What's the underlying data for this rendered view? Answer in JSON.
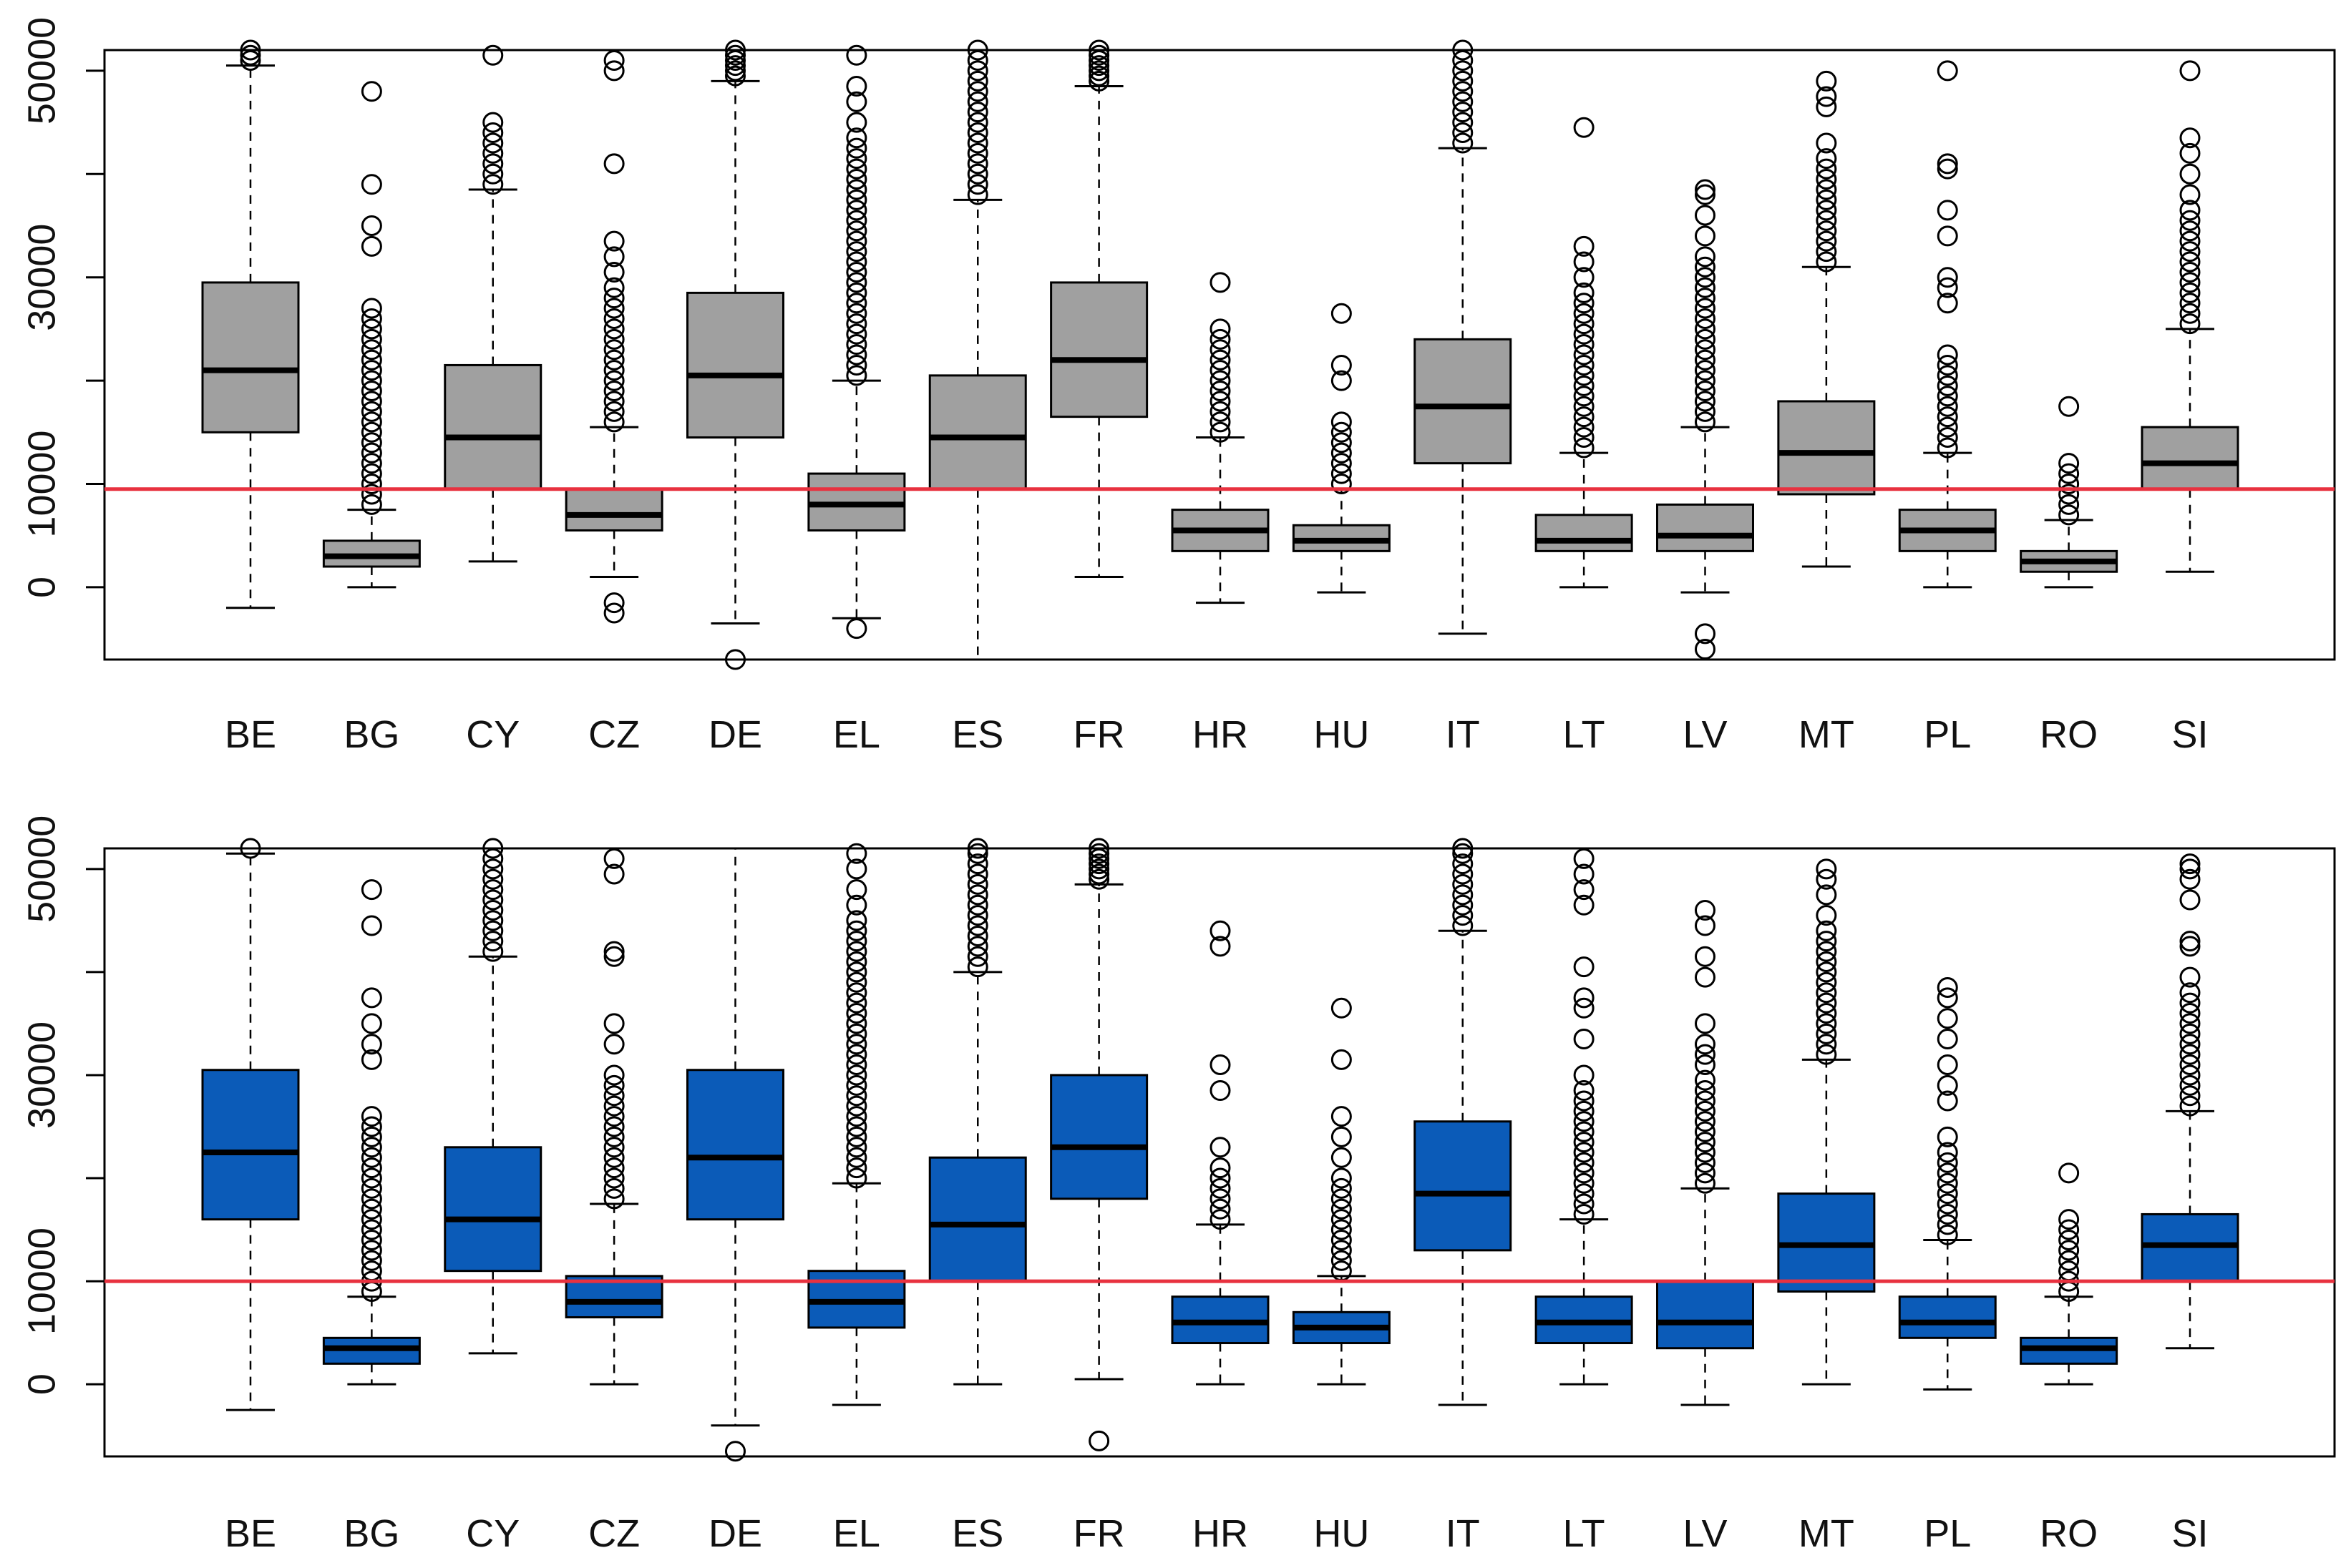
{
  "chart_data": [
    {
      "type": "boxplot",
      "title": "",
      "xlabel": "",
      "ylabel": "",
      "ylim": [
        -7000,
        52000
      ],
      "y_ticks": [
        "0",
        "10000",
        "30000",
        "50000"
      ],
      "y_minor_ticks": [
        20000,
        40000
      ],
      "reference_line": {
        "value": 9500,
        "color": "#e8313f"
      },
      "box_color": "#a0a0a0",
      "categories": [
        "BE",
        "BG",
        "CY",
        "CZ",
        "DE",
        "EL",
        "ES",
        "FR",
        "HR",
        "HU",
        "IT",
        "LT",
        "LV",
        "MT",
        "PL",
        "RO",
        "SI"
      ],
      "series": [
        {
          "name": "BE",
          "whisker_low": -2000,
          "q1": 15000,
          "median": 21000,
          "q3": 29500,
          "whisker_high": 50500,
          "outliers_low": [],
          "outliers_high": [
            51000,
            51500,
            52000
          ]
        },
        {
          "name": "BG",
          "whisker_low": 0,
          "q1": 2000,
          "median": 3000,
          "q3": 4500,
          "whisker_high": 7500,
          "outliers_low": [],
          "outliers_high": [
            8000,
            9000,
            10000,
            11000,
            12000,
            13000,
            14000,
            15000,
            16000,
            17000,
            18000,
            19000,
            20000,
            21000,
            22000,
            23000,
            24000,
            25000,
            26000,
            27000,
            33000,
            35000,
            39000,
            48000
          ]
        },
        {
          "name": "CY",
          "whisker_low": 2500,
          "q1": 9500,
          "median": 14500,
          "q3": 21500,
          "whisker_high": 38500,
          "outliers_low": [],
          "outliers_high": [
            39000,
            40000,
            41000,
            42000,
            43000,
            44000,
            45000,
            51500
          ]
        },
        {
          "name": "CZ",
          "whisker_low": 1000,
          "q1": 5500,
          "median": 7000,
          "q3": 9500,
          "whisker_high": 15500,
          "outliers_low": [
            -1500,
            -2500
          ],
          "outliers_high": [
            16000,
            17000,
            18000,
            19000,
            20000,
            21000,
            22000,
            23000,
            24000,
            25000,
            26000,
            27000,
            28000,
            29000,
            30500,
            32000,
            33500,
            41000,
            50000,
            51000
          ]
        },
        {
          "name": "DE",
          "whisker_low": -3500,
          "q1": 14500,
          "median": 20500,
          "q3": 28500,
          "whisker_high": 49000,
          "outliers_low": [
            -7000
          ],
          "outliers_high": [
            49500,
            50000,
            50500,
            51000,
            51500,
            52000
          ]
        },
        {
          "name": "EL",
          "whisker_low": -3000,
          "q1": 5500,
          "median": 8000,
          "q3": 11000,
          "whisker_high": 20000,
          "outliers_low": [
            -4000
          ],
          "outliers_high": [
            20500,
            21500,
            22500,
            23500,
            24500,
            25500,
            26500,
            27500,
            28500,
            29500,
            30500,
            31500,
            32500,
            33500,
            34500,
            35500,
            36500,
            37500,
            38500,
            39500,
            40500,
            41500,
            42500,
            43500,
            45000,
            47000,
            48500,
            51500
          ]
        },
        {
          "name": "ES",
          "whisker_low": -7000,
          "q1": 9500,
          "median": 14500,
          "q3": 20500,
          "whisker_high": 37500,
          "outliers_low": [],
          "outliers_high": [
            38000,
            39000,
            40000,
            41000,
            42000,
            43000,
            44000,
            45000,
            46000,
            47000,
            48000,
            49000,
            50000,
            51000,
            52000
          ]
        },
        {
          "name": "FR",
          "whisker_low": 1000,
          "q1": 16500,
          "median": 22000,
          "q3": 29500,
          "whisker_high": 48500,
          "outliers_low": [],
          "outliers_high": [
            49000,
            49500,
            50000,
            50500,
            51000,
            51500,
            52000
          ]
        },
        {
          "name": "HR",
          "whisker_low": -1500,
          "q1": 3500,
          "median": 5500,
          "q3": 7500,
          "whisker_high": 14500,
          "outliers_low": [],
          "outliers_high": [
            15000,
            16000,
            17000,
            18000,
            19000,
            20000,
            21000,
            22000,
            23000,
            24000,
            25000,
            29500
          ]
        },
        {
          "name": "HU",
          "whisker_low": -500,
          "q1": 3500,
          "median": 4500,
          "q3": 6000,
          "whisker_high": 9500,
          "outliers_low": [],
          "outliers_high": [
            10000,
            11000,
            12000,
            13000,
            14000,
            15000,
            16000,
            20000,
            21500,
            26500
          ]
        },
        {
          "name": "IT",
          "whisker_low": -4500,
          "q1": 12000,
          "median": 17500,
          "q3": 24000,
          "whisker_high": 42500,
          "outliers_low": [],
          "outliers_high": [
            43000,
            44000,
            45000,
            46000,
            47000,
            48000,
            49000,
            50000,
            51000,
            52000
          ]
        },
        {
          "name": "LT",
          "whisker_low": 0,
          "q1": 3500,
          "median": 4500,
          "q3": 7000,
          "whisker_high": 13000,
          "outliers_low": [],
          "outliers_high": [
            13500,
            14500,
            15500,
            16500,
            17500,
            18500,
            19500,
            20500,
            21500,
            22500,
            23500,
            24500,
            25500,
            26500,
            27500,
            28500,
            30000,
            31500,
            33000,
            44500
          ]
        },
        {
          "name": "LV",
          "whisker_low": -500,
          "q1": 3500,
          "median": 5000,
          "q3": 8000,
          "whisker_high": 15500,
          "outliers_low": [
            -4500,
            -6000
          ],
          "outliers_high": [
            16000,
            17000,
            18000,
            19000,
            20000,
            21000,
            22000,
            23000,
            24000,
            25000,
            26000,
            27000,
            28000,
            29000,
            30000,
            31000,
            32000,
            34000,
            36000,
            38000,
            38500
          ]
        },
        {
          "name": "MT",
          "whisker_low": 2000,
          "q1": 9000,
          "median": 13000,
          "q3": 18000,
          "whisker_high": 31000,
          "outliers_low": [],
          "outliers_high": [
            31500,
            32500,
            33500,
            34500,
            35500,
            36500,
            37500,
            38500,
            39500,
            40500,
            41500,
            43000,
            46500,
            47500,
            49000
          ]
        },
        {
          "name": "PL",
          "whisker_low": 0,
          "q1": 3500,
          "median": 5500,
          "q3": 7500,
          "whisker_high": 13000,
          "outliers_low": [],
          "outliers_high": [
            13500,
            14500,
            15500,
            16500,
            17500,
            18500,
            19500,
            20500,
            21500,
            22500,
            27500,
            29000,
            30000,
            34000,
            36500,
            40500,
            41000,
            50000
          ]
        },
        {
          "name": "RO",
          "whisker_low": 0,
          "q1": 1500,
          "median": 2500,
          "q3": 3500,
          "whisker_high": 6500,
          "outliers_low": [],
          "outliers_high": [
            7000,
            8000,
            9000,
            10000,
            11000,
            12000,
            17500
          ]
        },
        {
          "name": "SI",
          "whisker_low": 1500,
          "q1": 9500,
          "median": 12000,
          "q3": 15500,
          "whisker_high": 25000,
          "outliers_low": [],
          "outliers_high": [
            25500,
            26500,
            27500,
            28500,
            29500,
            30500,
            31500,
            32500,
            33500,
            34500,
            35500,
            36500,
            38000,
            40000,
            42000,
            43500,
            50000
          ]
        }
      ]
    },
    {
      "type": "boxplot",
      "title": "",
      "xlabel": "",
      "ylabel": "",
      "ylim": [
        -7000,
        52000
      ],
      "y_ticks": [
        "0",
        "10000",
        "30000",
        "50000"
      ],
      "y_minor_ticks": [
        20000,
        40000
      ],
      "reference_line": {
        "value": 10000,
        "color": "#e8313f"
      },
      "box_color": "#0b5bb8",
      "categories": [
        "BE",
        "BG",
        "CY",
        "CZ",
        "DE",
        "EL",
        "ES",
        "FR",
        "HR",
        "HU",
        "IT",
        "LT",
        "LV",
        "MT",
        "PL",
        "RO",
        "SI"
      ],
      "series": [
        {
          "name": "BE",
          "whisker_low": -2500,
          "q1": 16000,
          "median": 22500,
          "q3": 30500,
          "whisker_high": 51500,
          "outliers_low": [],
          "outliers_high": [
            52000
          ]
        },
        {
          "name": "BG",
          "whisker_low": 0,
          "q1": 2000,
          "median": 3500,
          "q3": 4500,
          "whisker_high": 8500,
          "outliers_low": [],
          "outliers_high": [
            9000,
            10000,
            11000,
            12000,
            13000,
            14000,
            15000,
            16000,
            17000,
            18000,
            19000,
            20000,
            21000,
            22000,
            23000,
            24000,
            25000,
            26000,
            31500,
            33000,
            35000,
            37500,
            44500,
            48000
          ]
        },
        {
          "name": "CY",
          "whisker_low": 3000,
          "q1": 11000,
          "median": 16000,
          "q3": 23000,
          "whisker_high": 41500,
          "outliers_low": [],
          "outliers_high": [
            42000,
            43000,
            44000,
            45000,
            46000,
            47000,
            48000,
            49000,
            50000,
            51000,
            52000
          ]
        },
        {
          "name": "CZ",
          "whisker_low": 0,
          "q1": 6500,
          "median": 8000,
          "q3": 10500,
          "whisker_high": 17500,
          "outliers_low": [],
          "outliers_high": [
            18000,
            19000,
            20000,
            21000,
            22000,
            23000,
            24000,
            25000,
            26000,
            27000,
            28000,
            29000,
            30000,
            33000,
            35000,
            41500,
            42000,
            49500,
            51000
          ]
        },
        {
          "name": "DE",
          "whisker_low": -4000,
          "q1": 16000,
          "median": 22000,
          "q3": 30500,
          "whisker_high": 52000,
          "outliers_low": [
            -6500
          ],
          "outliers_high": []
        },
        {
          "name": "EL",
          "whisker_low": -2000,
          "q1": 5500,
          "median": 8000,
          "q3": 11000,
          "whisker_high": 19500,
          "outliers_low": [],
          "outliers_high": [
            20000,
            21000,
            22000,
            23000,
            24000,
            25000,
            26000,
            27000,
            28000,
            29000,
            30000,
            31000,
            32000,
            33000,
            34000,
            35000,
            36000,
            37000,
            38000,
            39000,
            40000,
            41000,
            42000,
            43000,
            44000,
            45000,
            46500,
            48000,
            50000,
            51500
          ]
        },
        {
          "name": "ES",
          "whisker_low": 0,
          "q1": 10000,
          "median": 15500,
          "q3": 22000,
          "whisker_high": 40000,
          "outliers_low": [],
          "outliers_high": [
            40500,
            41500,
            42500,
            43500,
            44500,
            45500,
            46500,
            47500,
            48500,
            49500,
            50500,
            51500,
            52000
          ]
        },
        {
          "name": "FR",
          "whisker_low": 500,
          "q1": 18000,
          "median": 23000,
          "q3": 30000,
          "whisker_high": 48500,
          "outliers_low": [
            -5500
          ],
          "outliers_high": [
            49000,
            49500,
            50000,
            50500,
            51000,
            51500,
            52000
          ]
        },
        {
          "name": "HR",
          "whisker_low": 0,
          "q1": 4000,
          "median": 6000,
          "q3": 8500,
          "whisker_high": 15500,
          "outliers_low": [],
          "outliers_high": [
            16000,
            17000,
            18000,
            19000,
            20000,
            21000,
            23000,
            28500,
            31000,
            42500,
            44000
          ]
        },
        {
          "name": "HU",
          "whisker_low": 0,
          "q1": 4000,
          "median": 5500,
          "q3": 7000,
          "whisker_high": 10500,
          "outliers_low": [],
          "outliers_high": [
            11000,
            12000,
            13000,
            14000,
            15000,
            16000,
            17000,
            18000,
            19000,
            20000,
            22000,
            24000,
            26000,
            31500,
            36500
          ]
        },
        {
          "name": "IT",
          "whisker_low": -2000,
          "q1": 13000,
          "median": 18500,
          "q3": 25500,
          "whisker_high": 44000,
          "outliers_low": [],
          "outliers_high": [
            44500,
            45500,
            46500,
            47500,
            48500,
            49500,
            50500,
            51500,
            52000
          ]
        },
        {
          "name": "LT",
          "whisker_low": 0,
          "q1": 4000,
          "median": 6000,
          "q3": 8500,
          "whisker_high": 16000,
          "outliers_low": [],
          "outliers_high": [
            16500,
            17500,
            18500,
            19500,
            20500,
            21500,
            22500,
            23500,
            24500,
            25500,
            26500,
            27500,
            28500,
            30000,
            33500,
            36500,
            37500,
            40500,
            46500,
            48000,
            49500,
            51000
          ]
        },
        {
          "name": "LV",
          "whisker_low": -2000,
          "q1": 3500,
          "median": 6000,
          "q3": 10000,
          "whisker_high": 19000,
          "outliers_low": [],
          "outliers_high": [
            19500,
            20500,
            21500,
            22500,
            23500,
            24500,
            25500,
            26500,
            27500,
            28500,
            29500,
            31000,
            32000,
            33000,
            35000,
            39500,
            41500,
            44500,
            46000
          ]
        },
        {
          "name": "MT",
          "whisker_low": 0,
          "q1": 9000,
          "median": 13500,
          "q3": 18500,
          "whisker_high": 31500,
          "outliers_low": [],
          "outliers_high": [
            32000,
            33000,
            34000,
            35000,
            36000,
            37000,
            38000,
            39000,
            40000,
            41000,
            42000,
            43000,
            44000,
            45500,
            47500,
            49000,
            50000
          ]
        },
        {
          "name": "PL",
          "whisker_low": -500,
          "q1": 4500,
          "median": 6000,
          "q3": 8500,
          "whisker_high": 14000,
          "outliers_low": [],
          "outliers_high": [
            14500,
            15500,
            16500,
            17500,
            18500,
            19500,
            20500,
            21500,
            22500,
            24000,
            27500,
            29000,
            31000,
            33500,
            35500,
            37500,
            38500
          ]
        },
        {
          "name": "RO",
          "whisker_low": 0,
          "q1": 2000,
          "median": 3500,
          "q3": 4500,
          "whisker_high": 8500,
          "outliers_low": [],
          "outliers_high": [
            9000,
            10000,
            11000,
            12000,
            13000,
            14000,
            15000,
            16000,
            20500
          ]
        },
        {
          "name": "SI",
          "whisker_low": 3500,
          "q1": 10000,
          "median": 13500,
          "q3": 16500,
          "whisker_high": 26500,
          "outliers_low": [],
          "outliers_high": [
            27000,
            28000,
            29000,
            30000,
            31000,
            32000,
            33000,
            34000,
            35000,
            36000,
            37000,
            38000,
            39500,
            42500,
            43000,
            47000,
            49000,
            50000,
            50500
          ]
        }
      ]
    }
  ]
}
